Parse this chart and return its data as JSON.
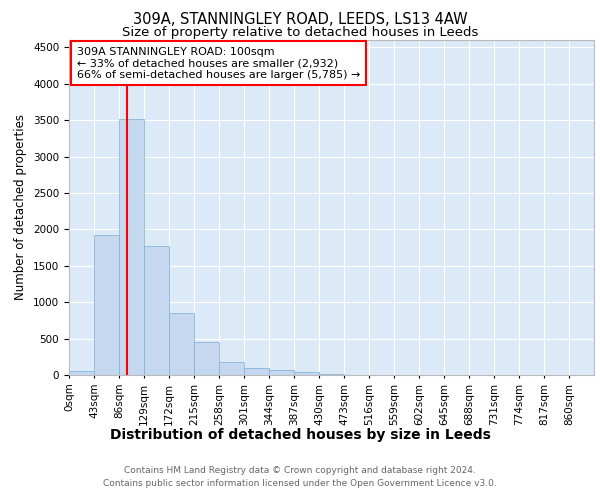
{
  "title": "309A, STANNINGLEY ROAD, LEEDS, LS13 4AW",
  "subtitle": "Size of property relative to detached houses in Leeds",
  "xlabel": "Distribution of detached houses by size in Leeds",
  "ylabel": "Number of detached properties",
  "bar_color": "#c5d8f0",
  "bar_edge_color": "#7aafd4",
  "plot_bg_color": "#dce9f7",
  "red_line_x": 100,
  "annotation_title": "309A STANNINGLEY ROAD: 100sqm",
  "annotation_line2": "← 33% of detached houses are smaller (2,932)",
  "annotation_line3": "66% of semi-detached houses are larger (5,785) →",
  "footer_line1": "Contains HM Land Registry data © Crown copyright and database right 2024.",
  "footer_line2": "Contains public sector information licensed under the Open Government Licence v3.0.",
  "bin_edges": [
    0,
    43,
    86,
    129,
    172,
    215,
    258,
    301,
    344,
    387,
    430,
    473,
    516,
    559,
    602,
    645,
    688,
    731,
    774,
    817,
    860
  ],
  "bar_heights": [
    50,
    1920,
    3510,
    1775,
    855,
    450,
    185,
    95,
    65,
    40,
    20,
    0,
    0,
    0,
    0,
    0,
    0,
    0,
    0,
    0
  ],
  "ylim": [
    0,
    4600
  ],
  "yticks": [
    0,
    500,
    1000,
    1500,
    2000,
    2500,
    3000,
    3500,
    4000,
    4500
  ],
  "title_fontsize": 10.5,
  "subtitle_fontsize": 9.5,
  "xlabel_fontsize": 10,
  "ylabel_fontsize": 8.5,
  "tick_fontsize": 7.5,
  "footer_fontsize": 6.5,
  "ann_fontsize": 8
}
